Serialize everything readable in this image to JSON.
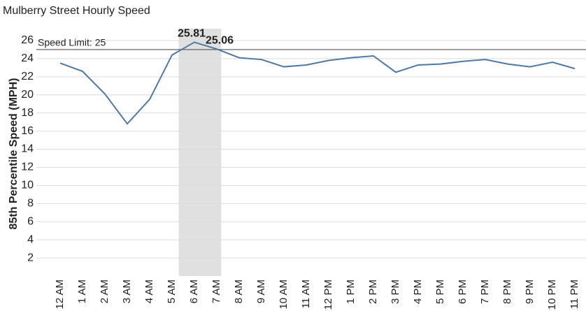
{
  "chart_data": {
    "type": "line",
    "title": "Mulberry Street Hourly Speed",
    "y_label": "85th Percentile Speed (MPH)",
    "categories": [
      "12 AM",
      "1 AM",
      "2 AM",
      "3 AM",
      "4 AM",
      "5 AM",
      "6 AM",
      "7 AM",
      "8 AM",
      "9 AM",
      "10 AM",
      "11 AM",
      "12 PM",
      "1 PM",
      "2 PM",
      "3 PM",
      "4 PM",
      "5 PM",
      "6 PM",
      "7 PM",
      "8 PM",
      "9 PM",
      "10 PM",
      "11 PM"
    ],
    "series": [
      {
        "name": "85th Percentile Speed",
        "color": "#4e79a7",
        "values": [
          23.5,
          22.6,
          20.1,
          16.8,
          19.5,
          24.4,
          25.81,
          25.06,
          24.1,
          23.9,
          23.1,
          23.3,
          23.8,
          24.1,
          24.3,
          22.5,
          23.3,
          23.4,
          23.7,
          23.9,
          23.4,
          23.1,
          23.6,
          22.9
        ]
      }
    ],
    "ylim": [
      0,
      27
    ],
    "yticks": [
      2,
      4,
      6,
      8,
      10,
      12,
      14,
      16,
      18,
      20,
      22,
      24,
      26
    ],
    "grid": true,
    "reference_line": {
      "value": 25,
      "label": "Speed Limit: 25"
    },
    "highlight": {
      "from": "6 AM",
      "to": "7 AM",
      "color": "#e0e0e0"
    }
  }
}
